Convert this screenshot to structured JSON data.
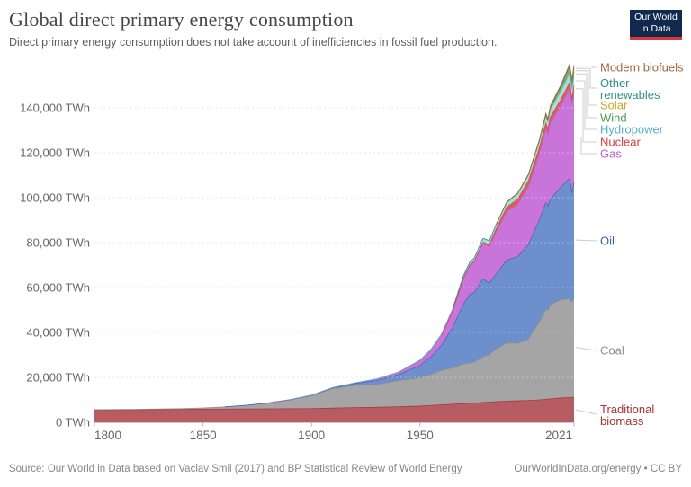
{
  "header": {
    "title": "Global direct primary energy consumption",
    "subtitle": "Direct primary energy consumption does not take account of inefficiencies in fossil fuel production.",
    "logo": {
      "line1": "Our World",
      "line2": "in Data",
      "bg_color": "#10294d",
      "accent_color": "#d0393e"
    }
  },
  "footer": {
    "source": "Source: Our World in Data based on Vaclav Smil (2017) and BP Statistical Review of World Energy",
    "credit": "OurWorldInData.org/energy • CC BY"
  },
  "chart_data": {
    "type": "area",
    "stacked": true,
    "unit": "TWh",
    "title": "Global direct primary energy consumption",
    "grid": "horizontal-dashed",
    "legend_position": "right-callout-labels",
    "x_range": [
      1800,
      2021
    ],
    "ylim": [
      0,
      160000
    ],
    "x_tick_values": [
      1800,
      1850,
      1900,
      1950,
      2021
    ],
    "x_tick_labels": [
      "1800",
      "1850",
      "1900",
      "1950",
      "2021"
    ],
    "y_tick_values": [
      0,
      20000,
      40000,
      60000,
      80000,
      100000,
      120000,
      140000
    ],
    "y_tick_labels": [
      "0 TWh",
      "20,000 TWh",
      "40,000 TWh",
      "60,000 TWh",
      "80,000 TWh",
      "100,000 TWh",
      "120,000 TWh",
      "140,000 TWh"
    ],
    "years": [
      1800,
      1810,
      1820,
      1830,
      1840,
      1850,
      1860,
      1870,
      1880,
      1890,
      1900,
      1910,
      1920,
      1930,
      1940,
      1950,
      1955,
      1960,
      1965,
      1970,
      1973,
      1975,
      1979,
      1982,
      1985,
      1990,
      1995,
      2000,
      2005,
      2008,
      2009,
      2010,
      2015,
      2019,
      2020,
      2021
    ],
    "series": [
      {
        "name": "Traditional biomass",
        "legend_lines": [
          "Traditional",
          "biomass"
        ],
        "fill": "#b85c63",
        "accent": "#a63232",
        "values": [
          5556,
          5583,
          5639,
          5694,
          5750,
          5833,
          5889,
          5944,
          6000,
          6056,
          6111,
          6333,
          6556,
          6667,
          6944,
          7222,
          7500,
          7778,
          8056,
          8333,
          8500,
          8611,
          8830,
          9000,
          9167,
          9444,
          9583,
          9722,
          10000,
          10250,
          10330,
          10417,
          10833,
          11045,
          11080,
          11111
        ]
      },
      {
        "name": "Coal",
        "legend_lines": [
          "Coal"
        ],
        "fill": "#a5a5a5",
        "accent": "#8c8c8c",
        "values": [
          97,
          128,
          153,
          264,
          356,
          569,
          983,
          1642,
          2542,
          3856,
          5728,
          8656,
          9833,
          10125,
          11586,
          12603,
          13800,
          15442,
          16151,
          17605,
          17900,
          18237,
          20300,
          21100,
          23388,
          25905,
          25558,
          27427,
          34641,
          40000,
          39500,
          41976,
          43786,
          43869,
          42329,
          44473
        ]
      },
      {
        "name": "Oil",
        "legend_lines": [
          "Oil"
        ],
        "fill": "#6d90cc",
        "accent": "#3e64ad",
        "values": [
          0,
          0,
          0,
          0,
          0,
          0,
          0,
          11,
          83,
          153,
          181,
          397,
          889,
          1756,
          2653,
          5444,
          7700,
          11096,
          17858,
          26659,
          30500,
          30882,
          34700,
          31800,
          33348,
          36919,
          38606,
          42004,
          45538,
          47500,
          46400,
          46804,
          50151,
          53619,
          48712,
          51170
        ]
      },
      {
        "name": "Gas",
        "legend_lines": [
          "Gas"
        ],
        "fill": "#c974d8",
        "accent": "#b95fd0",
        "values": [
          0,
          0,
          0,
          0,
          0,
          0,
          0,
          0,
          0,
          36,
          64,
          141,
          233,
          604,
          875,
          2092,
          3000,
          4472,
          7370,
          11382,
          13000,
          13605,
          15800,
          16300,
          18484,
          21492,
          23204,
          25762,
          29215,
          32700,
          31700,
          33816,
          36444,
          39924,
          39189,
          40375
        ]
      },
      {
        "name": "Nuclear",
        "legend_lines": [
          "Nuclear"
        ],
        "fill": "#dc6058",
        "accent": "#d73c3c",
        "values": [
          0,
          0,
          0,
          0,
          0,
          0,
          0,
          0,
          0,
          0,
          0,
          0,
          0,
          0,
          0,
          0,
          0,
          0,
          26,
          79,
          190,
          370,
          560,
          870,
          1489,
          2001,
          2322,
          2540,
          2697,
          2731,
          2697,
          2722,
          2571,
          2796,
          2616,
          2750
        ]
      },
      {
        "name": "Hydropower",
        "legend_lines": [
          "Hydropower"
        ],
        "fill": "#a7dbd8",
        "accent": "#58b0c0",
        "values": [
          0,
          0,
          0,
          0,
          0,
          0,
          0,
          0,
          0,
          0,
          17,
          35,
          75,
          170,
          300,
          340,
          500,
          690,
          919,
          1180,
          1300,
          1450,
          1650,
          1800,
          1954,
          2159,
          2460,
          2614,
          2900,
          3200,
          3250,
          3404,
          3879,
          4222,
          4345,
          4274
        ]
      },
      {
        "name": "Wind",
        "legend_lines": [
          "Wind"
        ],
        "fill": "#8ac48a",
        "accent": "#4e9b53",
        "values": [
          0,
          0,
          0,
          0,
          0,
          0,
          0,
          0,
          0,
          0,
          0,
          0,
          0,
          0,
          0,
          0,
          0,
          0,
          0,
          0,
          0,
          0,
          0,
          0,
          0,
          4,
          8,
          31,
          104,
          220,
          276,
          342,
          831,
          1419,
          1586,
          1862
        ]
      },
      {
        "name": "Solar",
        "legend_lines": [
          "Solar"
        ],
        "fill": "#e0bb47",
        "accent": "#cfa42a",
        "values": [
          0,
          0,
          0,
          0,
          0,
          0,
          0,
          0,
          0,
          0,
          0,
          0,
          0,
          0,
          0,
          0,
          0,
          0,
          0,
          0,
          0,
          0,
          0,
          0,
          0,
          0,
          0,
          1,
          4,
          12,
          20,
          32,
          256,
          699,
          838,
          1033
        ]
      },
      {
        "name": "Other renewables",
        "legend_lines": [
          "Other",
          "renewables"
        ],
        "fill": "#6fb5ae",
        "accent": "#2f8e89",
        "values": [
          0,
          0,
          0,
          0,
          0,
          0,
          0,
          0,
          0,
          0,
          0,
          0,
          0,
          0,
          0,
          0,
          0,
          0,
          0,
          12,
          20,
          25,
          30,
          40,
          60,
          130,
          180,
          240,
          350,
          450,
          480,
          520,
          700,
          880,
          910,
          953
        ]
      },
      {
        "name": "Modern biofuels",
        "legend_lines": [
          "Modern biofuels"
        ],
        "fill": "#ab7145",
        "accent": "#a2653c",
        "values": [
          0,
          0,
          0,
          0,
          0,
          0,
          0,
          0,
          0,
          0,
          0,
          0,
          0,
          0,
          0,
          0,
          0,
          0,
          0,
          0,
          0,
          0,
          0,
          0,
          0,
          110,
          150,
          190,
          300,
          550,
          600,
          700,
          900,
          1100,
          1050,
          1140
        ]
      }
    ]
  }
}
